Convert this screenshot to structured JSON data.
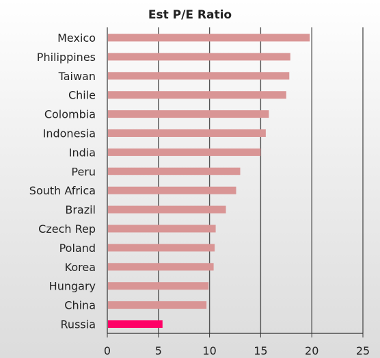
{
  "chart_data": {
    "type": "bar",
    "orientation": "horizontal",
    "title": "Est P/E Ratio",
    "xlabel": "",
    "ylabel": "",
    "categories": [
      "Mexico",
      "Philippines",
      "Taiwan",
      "Chile",
      "Colombia",
      "Indonesia",
      "India",
      "Peru",
      "South Africa",
      "Brazil",
      "Czech Rep",
      "Poland",
      "Korea",
      "Hungary",
      "China",
      "Russia"
    ],
    "values": [
      19.8,
      17.9,
      17.8,
      17.5,
      15.8,
      15.5,
      15.0,
      13.0,
      12.6,
      11.6,
      10.6,
      10.5,
      10.4,
      9.9,
      9.7,
      5.4
    ],
    "highlight_category": "Russia",
    "xlim": [
      0,
      25
    ],
    "xticks": [
      "0",
      "5",
      "10",
      "15",
      "20",
      "25"
    ],
    "grid": "vertical",
    "legend": "none",
    "colors": {
      "bar": "#d99595",
      "highlight": "#ff0066",
      "gridline": "#555555",
      "axis": "#333333",
      "text": "#222222"
    }
  }
}
